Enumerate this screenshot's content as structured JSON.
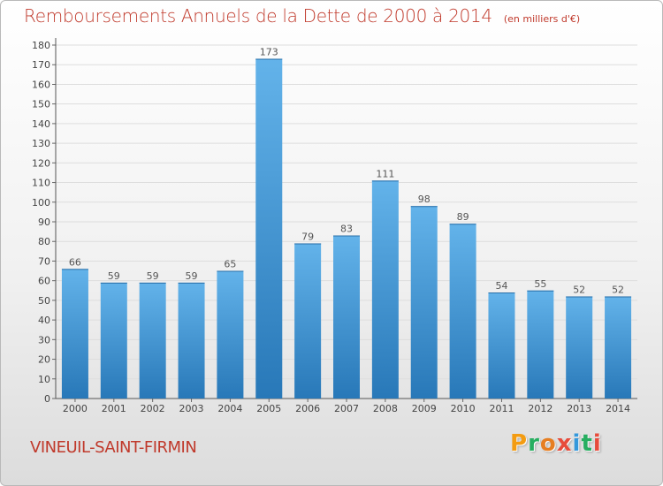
{
  "header": {
    "title": "Remboursements Annuels de la Dette de 2000 à 2014",
    "subtitle": "(en milliers d'€)"
  },
  "footer": {
    "commune": "VINEUIL-SAINT-FIRMIN",
    "logo_text": "Proxiti",
    "logo_colors": [
      "#f39c12",
      "#27ae60",
      "#e67e22",
      "#e74c3c",
      "#3498db",
      "#27ae60",
      "#e74c3c"
    ]
  },
  "colors": {
    "bar_top": "#63b3ea",
    "bar_bottom": "#2878b8",
    "title": "#c0392b",
    "grid": "#dddddd"
  },
  "chart_data": {
    "type": "bar",
    "categories": [
      "2000",
      "2001",
      "2002",
      "2003",
      "2004",
      "2005",
      "2006",
      "2007",
      "2008",
      "2009",
      "2010",
      "2011",
      "2012",
      "2013",
      "2014"
    ],
    "values": [
      66,
      59,
      59,
      59,
      65,
      173,
      79,
      83,
      111,
      98,
      89,
      54,
      55,
      52,
      52
    ],
    "title": "Remboursements Annuels de la Dette de 2000 à 2014",
    "subtitle": "(en milliers d'€)",
    "xlabel": "",
    "ylabel": "",
    "ylim": [
      0,
      180
    ],
    "ytick_step": 10,
    "grid": true
  }
}
